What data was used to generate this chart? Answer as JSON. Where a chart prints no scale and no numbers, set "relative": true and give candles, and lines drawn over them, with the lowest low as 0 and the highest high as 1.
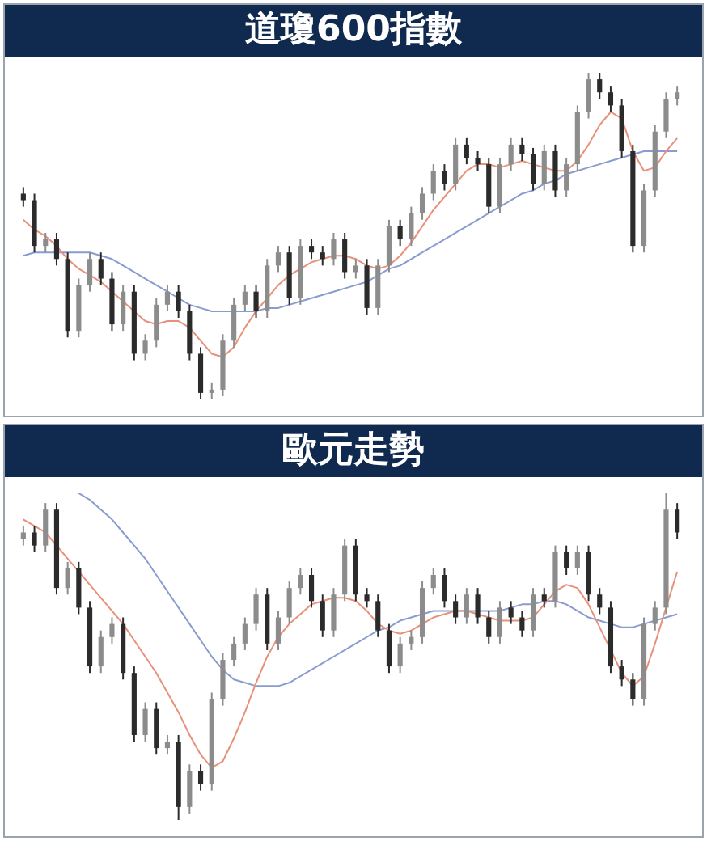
{
  "chart_data": [
    {
      "type": "candlestick",
      "title": "道瓊600指數",
      "relative": true,
      "colors": [
        "#2b2b2b",
        "#2b2b2b",
        "#8c8c8c",
        "#2b2b2b",
        "#2b2b2b",
        "#8c8c8c",
        "#8c8c8c",
        "#2b2b2b",
        "#2b2b2b",
        "#8c8c8c",
        "#2b2b2b",
        "#8c8c8c",
        "#8c8c8c",
        "#8c8c8c",
        "#2b2b2b",
        "#2b2b2b",
        "#2b2b2b",
        "#8c8c8c",
        "#8c8c8c",
        "#8c8c8c",
        "#8c8c8c",
        "#2b2b2b",
        "#8c8c8c",
        "#8c8c8c",
        "#2b2b2b",
        "#8c8c8c",
        "#2b2b2b",
        "#2b2b2b",
        "#8c8c8c",
        "#2b2b2b",
        "#8c8c8c",
        "#2b2b2b",
        "#8c8c8c",
        "#8c8c8c",
        "#2b2b2b",
        "#8c8c8c",
        "#8c8c8c",
        "#8c8c8c",
        "#2b2b2b",
        "#8c8c8c",
        "#2b2b2b",
        "#2b2b2b",
        "#2b2b2b",
        "#8c8c8c",
        "#8c8c8c",
        "#2b2b2b",
        "#2b2b2b",
        "#8c8c8c",
        "#2b2b2b",
        "#8c8c8c",
        "#8c8c8c",
        "#8c8c8c",
        "#2b2b2b",
        "#2b2b2b",
        "#2b2b2b",
        "#2b2b2b",
        "#8c8c8c",
        "#8c8c8c",
        "#8c8c8c",
        "#8c8c8c"
      ],
      "categories": [
        null,
        null,
        null,
        null,
        null,
        null,
        null,
        null,
        null,
        null,
        null,
        null,
        null,
        null,
        null,
        null,
        null,
        null,
        null,
        null,
        null,
        null,
        null,
        null,
        null,
        null,
        null,
        null,
        null,
        null,
        null,
        null,
        null,
        null,
        null,
        null,
        null,
        null,
        null,
        null,
        null,
        null,
        null,
        null,
        null,
        null,
        null,
        null,
        null,
        null,
        null,
        null,
        null,
        null,
        null,
        null,
        null,
        null,
        null,
        null
      ],
      "ohlc": [
        [
          0.63,
          0.65,
          0.59,
          0.61
        ],
        [
          0.61,
          0.63,
          0.45,
          0.47
        ],
        [
          0.47,
          0.51,
          0.45,
          0.49
        ],
        [
          0.49,
          0.51,
          0.41,
          0.43
        ],
        [
          0.43,
          0.45,
          0.19,
          0.21
        ],
        [
          0.21,
          0.37,
          0.19,
          0.35
        ],
        [
          0.35,
          0.45,
          0.33,
          0.43
        ],
        [
          0.43,
          0.45,
          0.35,
          0.37
        ],
        [
          0.37,
          0.39,
          0.21,
          0.23
        ],
        [
          0.23,
          0.35,
          0.21,
          0.33
        ],
        [
          0.33,
          0.35,
          0.12,
          0.14
        ],
        [
          0.14,
          0.2,
          0.12,
          0.18
        ],
        [
          0.18,
          0.31,
          0.16,
          0.29
        ],
        [
          0.29,
          0.35,
          0.27,
          0.33
        ],
        [
          0.33,
          0.35,
          0.25,
          0.27
        ],
        [
          0.27,
          0.29,
          0.12,
          0.14
        ],
        [
          0.14,
          0.16,
          0.0,
          0.02
        ],
        [
          0.02,
          0.05,
          0.0,
          0.03
        ],
        [
          0.03,
          0.2,
          0.01,
          0.18
        ],
        [
          0.18,
          0.31,
          0.16,
          0.29
        ],
        [
          0.29,
          0.35,
          0.27,
          0.33
        ],
        [
          0.33,
          0.35,
          0.25,
          0.27
        ],
        [
          0.27,
          0.43,
          0.25,
          0.41
        ],
        [
          0.41,
          0.47,
          0.39,
          0.45
        ],
        [
          0.45,
          0.47,
          0.29,
          0.31
        ],
        [
          0.31,
          0.49,
          0.29,
          0.47
        ],
        [
          0.47,
          0.49,
          0.43,
          0.45
        ],
        [
          0.45,
          0.47,
          0.41,
          0.43
        ],
        [
          0.43,
          0.51,
          0.41,
          0.49
        ],
        [
          0.49,
          0.51,
          0.37,
          0.39
        ],
        [
          0.39,
          0.43,
          0.37,
          0.41
        ],
        [
          0.41,
          0.43,
          0.26,
          0.28
        ],
        [
          0.28,
          0.43,
          0.26,
          0.41
        ],
        [
          0.41,
          0.55,
          0.39,
          0.53
        ],
        [
          0.53,
          0.55,
          0.47,
          0.49
        ],
        [
          0.49,
          0.59,
          0.47,
          0.57
        ],
        [
          0.57,
          0.65,
          0.55,
          0.63
        ],
        [
          0.63,
          0.72,
          0.61,
          0.7
        ],
        [
          0.7,
          0.72,
          0.64,
          0.66
        ],
        [
          0.66,
          0.8,
          0.64,
          0.78
        ],
        [
          0.78,
          0.8,
          0.72,
          0.74
        ],
        [
          0.74,
          0.76,
          0.7,
          0.72
        ],
        [
          0.72,
          0.74,
          0.57,
          0.59
        ],
        [
          0.59,
          0.74,
          0.57,
          0.72
        ],
        [
          0.72,
          0.8,
          0.7,
          0.78
        ],
        [
          0.78,
          0.8,
          0.73,
          0.75
        ],
        [
          0.75,
          0.77,
          0.64,
          0.66
        ],
        [
          0.66,
          0.78,
          0.64,
          0.76
        ],
        [
          0.76,
          0.78,
          0.62,
          0.64
        ],
        [
          0.64,
          0.74,
          0.62,
          0.72
        ],
        [
          0.72,
          0.9,
          0.7,
          0.88
        ],
        [
          0.88,
          1.0,
          0.86,
          0.98
        ],
        [
          0.98,
          1.0,
          0.92,
          0.94
        ],
        [
          0.94,
          0.96,
          0.88,
          0.9
        ],
        [
          0.9,
          0.92,
          0.74,
          0.76
        ],
        [
          0.76,
          0.78,
          0.45,
          0.47
        ],
        [
          0.47,
          0.66,
          0.45,
          0.64
        ],
        [
          0.64,
          0.84,
          0.62,
          0.82
        ],
        [
          0.82,
          0.94,
          0.8,
          0.92
        ],
        [
          0.92,
          0.96,
          0.9,
          0.94
        ]
      ],
      "series": [
        {
          "type": "line",
          "color": "#e8917a",
          "values": [
            0.55,
            0.52,
            0.5,
            0.47,
            0.43,
            0.4,
            0.38,
            0.36,
            0.33,
            0.3,
            0.27,
            0.24,
            0.23,
            0.24,
            0.24,
            0.22,
            0.18,
            0.14,
            0.13,
            0.16,
            0.22,
            0.27,
            0.31,
            0.35,
            0.38,
            0.4,
            0.42,
            0.43,
            0.44,
            0.44,
            0.43,
            0.41,
            0.4,
            0.41,
            0.44,
            0.48,
            0.53,
            0.58,
            0.62,
            0.66,
            0.7,
            0.72,
            0.72,
            0.71,
            0.72,
            0.73,
            0.72,
            0.71,
            0.7,
            0.7,
            0.73,
            0.78,
            0.84,
            0.88,
            0.86,
            0.76,
            0.7,
            0.71,
            0.76,
            0.8
          ]
        },
        {
          "type": "line",
          "color": "#8a9bd0",
          "values": [
            0.44,
            0.45,
            0.45,
            0.45,
            0.45,
            0.45,
            0.45,
            0.44,
            0.43,
            0.41,
            0.39,
            0.37,
            0.35,
            0.33,
            0.31,
            0.29,
            0.28,
            0.27,
            0.27,
            0.27,
            0.27,
            0.27,
            0.28,
            0.28,
            0.29,
            0.3,
            0.31,
            0.32,
            0.33,
            0.34,
            0.35,
            0.36,
            0.38,
            0.4,
            0.41,
            0.43,
            0.45,
            0.47,
            0.49,
            0.51,
            0.53,
            0.55,
            0.57,
            0.59,
            0.61,
            0.63,
            0.64,
            0.66,
            0.67,
            0.69,
            0.7,
            0.71,
            0.72,
            0.73,
            0.74,
            0.75,
            0.76,
            0.76,
            0.76,
            0.76
          ]
        }
      ]
    },
    {
      "type": "candlestick",
      "title": "歐元走勢",
      "relative": true,
      "colors": [
        "#8c8c8c",
        "#2b2b2b",
        "#8c8c8c",
        "#2b2b2b",
        "#8c8c8c",
        "#2b2b2b",
        "#2b2b2b",
        "#8c8c8c",
        "#8c8c8c",
        "#2b2b2b",
        "#2b2b2b",
        "#8c8c8c",
        "#2b2b2b",
        "#8c8c8c",
        "#2b2b2b",
        "#8c8c8c",
        "#2b2b2b",
        "#8c8c8c",
        "#8c8c8c",
        "#8c8c8c",
        "#8c8c8c",
        "#8c8c8c",
        "#2b2b2b",
        "#8c8c8c",
        "#8c8c8c",
        "#8c8c8c",
        "#2b2b2b",
        "#2b2b2b",
        "#8c8c8c",
        "#8c8c8c",
        "#2b2b2b",
        "#2b2b2b",
        "#2b2b2b",
        "#2b2b2b",
        "#8c8c8c",
        "#8c8c8c",
        "#8c8c8c",
        "#8c8c8c",
        "#2b2b2b",
        "#2b2b2b",
        "#8c8c8c",
        "#2b2b2b",
        "#2b2b2b",
        "#8c8c8c",
        "#2b2b2b",
        "#2b2b2b",
        "#8c8c8c",
        "#2b2b2b",
        "#8c8c8c",
        "#2b2b2b",
        "#8c8c8c",
        "#2b2b2b",
        "#2b2b2b",
        "#2b2b2b",
        "#2b2b2b",
        "#2b2b2b",
        "#8c8c8c",
        "#8c8c8c",
        "#8c8c8c",
        "#2b2b2b"
      ],
      "categories": [
        null,
        null,
        null,
        null,
        null,
        null,
        null,
        null,
        null,
        null,
        null,
        null,
        null,
        null,
        null,
        null,
        null,
        null,
        null,
        null,
        null,
        null,
        null,
        null,
        null,
        null,
        null,
        null,
        null,
        null,
        null,
        null,
        null,
        null,
        null,
        null,
        null,
        null,
        null,
        null,
        null,
        null,
        null,
        null,
        null,
        null,
        null,
        null,
        null,
        null,
        null,
        null,
        null,
        null,
        null,
        null,
        null,
        null,
        null,
        null
      ],
      "ohlc": [
        [
          0.86,
          0.9,
          0.84,
          0.88
        ],
        [
          0.88,
          0.9,
          0.82,
          0.84
        ],
        [
          0.84,
          0.97,
          0.82,
          0.95
        ],
        [
          0.95,
          0.97,
          0.69,
          0.71
        ],
        [
          0.71,
          0.79,
          0.69,
          0.77
        ],
        [
          0.77,
          0.79,
          0.63,
          0.65
        ],
        [
          0.65,
          0.67,
          0.45,
          0.47
        ],
        [
          0.47,
          0.58,
          0.45,
          0.56
        ],
        [
          0.56,
          0.62,
          0.54,
          0.6
        ],
        [
          0.6,
          0.62,
          0.43,
          0.45
        ],
        [
          0.45,
          0.47,
          0.24,
          0.26
        ],
        [
          0.26,
          0.36,
          0.24,
          0.34
        ],
        [
          0.34,
          0.36,
          0.2,
          0.22
        ],
        [
          0.22,
          0.26,
          0.2,
          0.24
        ],
        [
          0.24,
          0.26,
          0.0,
          0.04
        ],
        [
          0.04,
          0.17,
          0.02,
          0.15
        ],
        [
          0.15,
          0.17,
          0.09,
          0.11
        ],
        [
          0.11,
          0.39,
          0.09,
          0.37
        ],
        [
          0.37,
          0.51,
          0.35,
          0.49
        ],
        [
          0.49,
          0.56,
          0.47,
          0.54
        ],
        [
          0.54,
          0.62,
          0.52,
          0.6
        ],
        [
          0.6,
          0.71,
          0.58,
          0.69
        ],
        [
          0.69,
          0.71,
          0.52,
          0.54
        ],
        [
          0.54,
          0.64,
          0.52,
          0.62
        ],
        [
          0.62,
          0.73,
          0.6,
          0.71
        ],
        [
          0.71,
          0.77,
          0.69,
          0.75
        ],
        [
          0.75,
          0.77,
          0.65,
          0.67
        ],
        [
          0.67,
          0.69,
          0.56,
          0.58
        ],
        [
          0.58,
          0.71,
          0.56,
          0.69
        ],
        [
          0.69,
          0.86,
          0.67,
          0.84
        ],
        [
          0.84,
          0.86,
          0.67,
          0.69
        ],
        [
          0.69,
          0.71,
          0.65,
          0.67
        ],
        [
          0.67,
          0.69,
          0.56,
          0.58
        ],
        [
          0.58,
          0.6,
          0.45,
          0.47
        ],
        [
          0.47,
          0.56,
          0.45,
          0.54
        ],
        [
          0.54,
          0.58,
          0.52,
          0.56
        ],
        [
          0.56,
          0.73,
          0.54,
          0.71
        ],
        [
          0.71,
          0.77,
          0.69,
          0.75
        ],
        [
          0.75,
          0.77,
          0.65,
          0.67
        ],
        [
          0.67,
          0.69,
          0.6,
          0.62
        ],
        [
          0.62,
          0.71,
          0.6,
          0.69
        ],
        [
          0.69,
          0.71,
          0.6,
          0.62
        ],
        [
          0.62,
          0.64,
          0.54,
          0.56
        ],
        [
          0.56,
          0.67,
          0.54,
          0.65
        ],
        [
          0.65,
          0.67,
          0.6,
          0.62
        ],
        [
          0.62,
          0.64,
          0.56,
          0.58
        ],
        [
          0.58,
          0.71,
          0.56,
          0.69
        ],
        [
          0.69,
          0.71,
          0.65,
          0.67
        ],
        [
          0.67,
          0.84,
          0.65,
          0.82
        ],
        [
          0.82,
          0.84,
          0.75,
          0.77
        ],
        [
          0.77,
          0.84,
          0.75,
          0.82
        ],
        [
          0.82,
          0.84,
          0.67,
          0.69
        ],
        [
          0.69,
          0.71,
          0.63,
          0.65
        ],
        [
          0.65,
          0.67,
          0.45,
          0.47
        ],
        [
          0.47,
          0.49,
          0.41,
          0.43
        ],
        [
          0.43,
          0.45,
          0.35,
          0.37
        ],
        [
          0.37,
          0.62,
          0.35,
          0.6
        ],
        [
          0.6,
          0.67,
          0.58,
          0.65
        ],
        [
          0.65,
          1.0,
          0.63,
          0.95
        ],
        [
          0.95,
          0.97,
          0.86,
          0.88
        ]
      ],
      "series": [
        {
          "type": "line",
          "color": "#e8917a",
          "values": [
            0.92,
            0.9,
            0.88,
            0.84,
            0.8,
            0.76,
            0.72,
            0.68,
            0.64,
            0.6,
            0.55,
            0.5,
            0.45,
            0.39,
            0.33,
            0.26,
            0.2,
            0.16,
            0.18,
            0.25,
            0.33,
            0.42,
            0.5,
            0.56,
            0.6,
            0.63,
            0.66,
            0.67,
            0.68,
            0.68,
            0.67,
            0.64,
            0.6,
            0.58,
            0.57,
            0.58,
            0.6,
            0.62,
            0.63,
            0.64,
            0.64,
            0.63,
            0.62,
            0.61,
            0.61,
            0.61,
            0.62,
            0.66,
            0.7,
            0.72,
            0.71,
            0.66,
            0.59,
            0.52,
            0.45,
            0.41,
            0.44,
            0.54,
            0.65,
            0.76
          ]
        },
        {
          "type": "line",
          "color": "#8a9bd0",
          "values": [
            null,
            null,
            null,
            null,
            null,
            1.0,
            0.98,
            0.95,
            0.92,
            0.88,
            0.84,
            0.8,
            0.75,
            0.7,
            0.65,
            0.6,
            0.55,
            0.5,
            0.46,
            0.43,
            0.42,
            0.41,
            0.41,
            0.41,
            0.42,
            0.44,
            0.46,
            0.48,
            0.5,
            0.52,
            0.54,
            0.56,
            0.58,
            0.59,
            0.61,
            0.62,
            0.63,
            0.64,
            0.64,
            0.64,
            0.64,
            0.64,
            0.64,
            0.64,
            0.65,
            0.66,
            0.66,
            0.67,
            0.67,
            0.66,
            0.64,
            0.62,
            0.61,
            0.6,
            0.59,
            0.59,
            0.6,
            0.61,
            0.62,
            0.63
          ]
        }
      ]
    }
  ]
}
